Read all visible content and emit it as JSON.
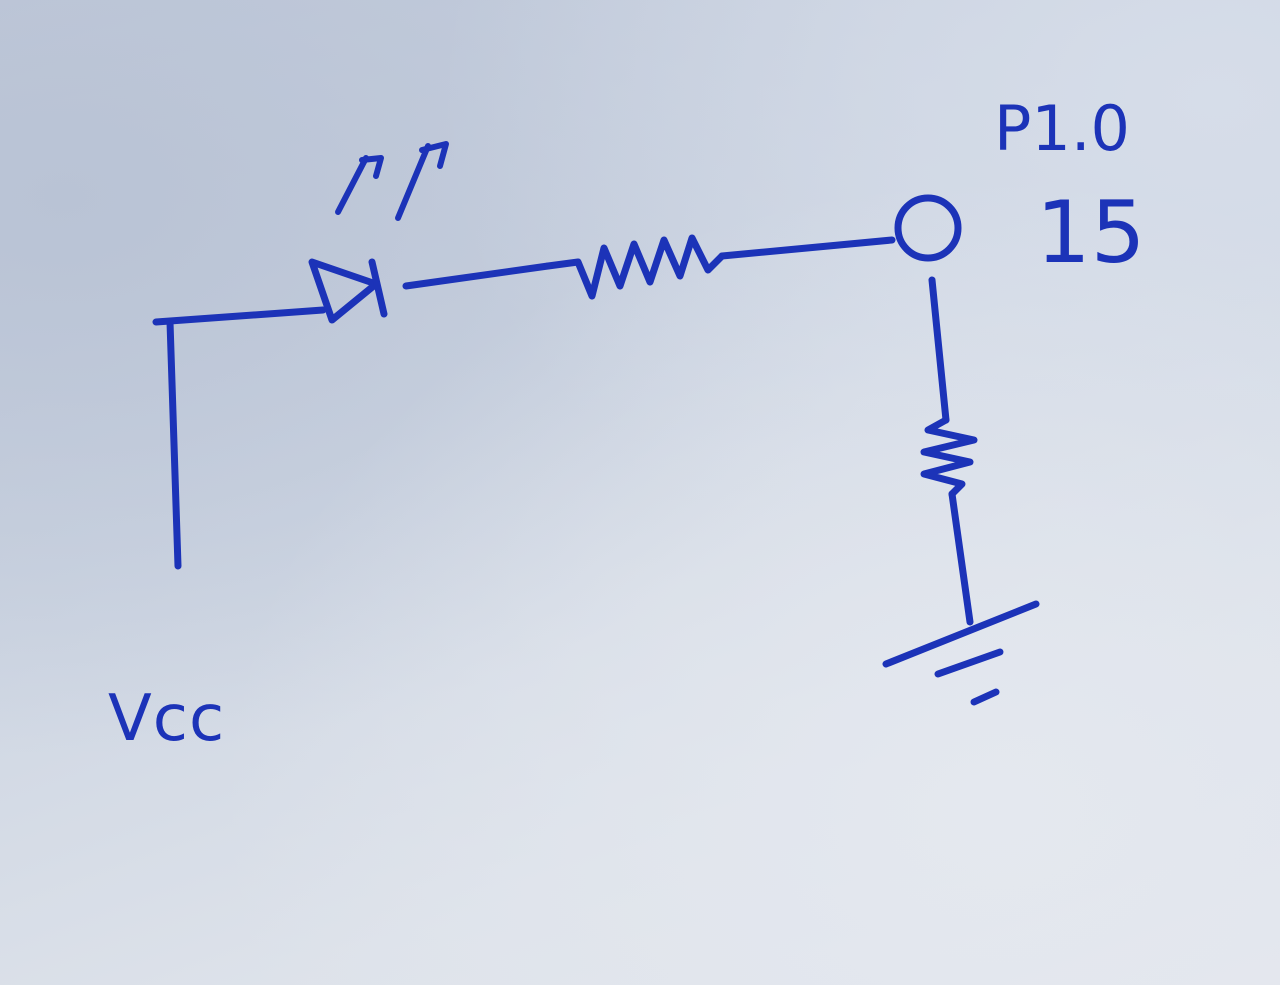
{
  "diagram": {
    "ink_color": "#1c33b8",
    "paper_color": "#d3d9e4",
    "labels": {
      "vcc": "Vcc",
      "port": "P1.0",
      "pin": "15"
    },
    "components": [
      {
        "name": "supply-wire"
      },
      {
        "name": "led",
        "symbol": "light-emitting-diode"
      },
      {
        "name": "series-resistor",
        "symbol": "resistor"
      },
      {
        "name": "port-terminal",
        "symbol": "open-circle"
      },
      {
        "name": "pulldown-resistor",
        "symbol": "resistor"
      },
      {
        "name": "ground",
        "symbol": "ground"
      }
    ]
  }
}
